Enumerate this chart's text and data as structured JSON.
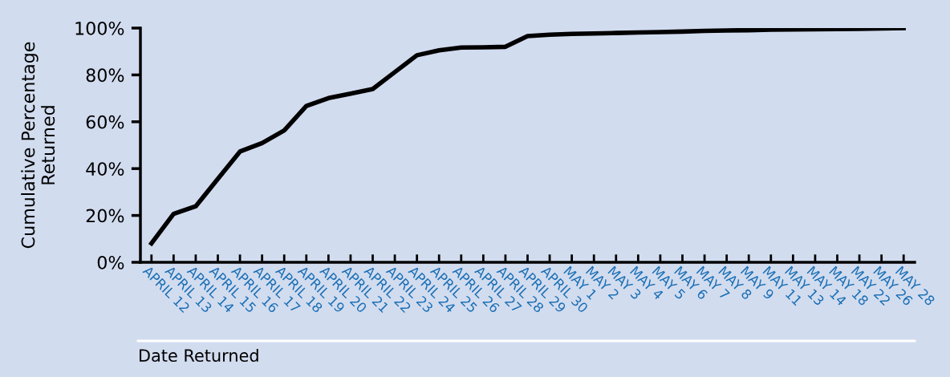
{
  "chart_data": {
    "type": "line",
    "ylabel": "Cumulative Percentage\nReturned",
    "xlabel": "Date Returned",
    "categories": [
      "APRIL 12",
      "APRIL 13",
      "APRIL 14",
      "APRIL 15",
      "APRIL 16",
      "APRIL 17",
      "APRIL 18",
      "APRIL 19",
      "APRIL 20",
      "APRIL 21",
      "APRIL 22",
      "APRIL 23",
      "APRIL 24",
      "APRIL 25",
      "APRIL 26",
      "APRIL 27",
      "APRIL 28",
      "APRIL 29",
      "APRIL 30",
      "MAY 1",
      "MAY 2",
      "MAY 3",
      "MAY 4",
      "MAY 5",
      "MAY 6",
      "MAY 7",
      "MAY 8",
      "MAY 9",
      "MAY 11",
      "MAY 13",
      "MAY 14",
      "MAY 18",
      "MAY 22",
      "MAY 26",
      "MAY 28"
    ],
    "series": [
      {
        "color": "#000000",
        "values": [
          8.1,
          20.7,
          23.9,
          35.6,
          47.3,
          50.9,
          56.3,
          66.7,
          70.1,
          72.0,
          74.0,
          81.2,
          88.4,
          90.5,
          91.7,
          91.8,
          92.0,
          96.6,
          97.2,
          97.5,
          97.7,
          97.9,
          98.1,
          98.3,
          98.5,
          98.8,
          99.0,
          99.1,
          99.3,
          99.4,
          99.5,
          99.6,
          99.7,
          99.8,
          100
        ]
      }
    ],
    "ylim": [
      0,
      100
    ],
    "yticks": [
      {
        "value": 0,
        "label": "0%"
      },
      {
        "value": 20,
        "label": "20%"
      },
      {
        "value": 40,
        "label": "40%"
      },
      {
        "value": 60,
        "label": "60%"
      },
      {
        "value": 80,
        "label": "80%"
      },
      {
        "value": 100,
        "label": "100%"
      }
    ],
    "grid": false,
    "legend": false,
    "marker": "none",
    "line_style": "solid"
  }
}
